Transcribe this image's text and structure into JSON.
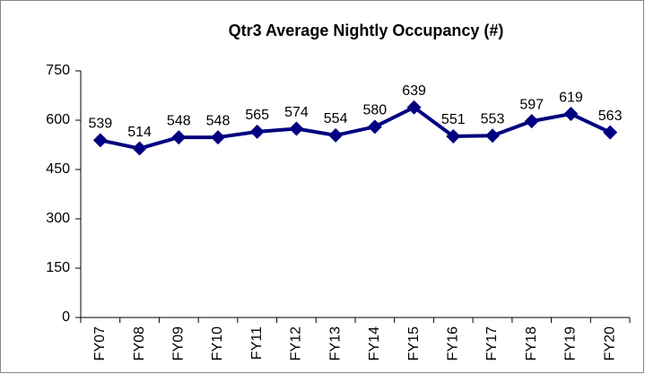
{
  "chart_data": {
    "type": "line",
    "title": "Qtr3 Average Nightly Occupancy (#)",
    "categories": [
      "FY07",
      "FY08",
      "FY09",
      "FY10",
      "FY11",
      "FY12",
      "FY13",
      "FY14",
      "FY15",
      "FY16",
      "FY17",
      "FY18",
      "FY19",
      "FY20"
    ],
    "values": [
      539,
      514,
      548,
      548,
      565,
      574,
      554,
      580,
      639,
      551,
      553,
      597,
      619,
      563
    ],
    "color": "#000080",
    "ylim": [
      0,
      750
    ],
    "yticks": [
      0,
      150,
      300,
      450,
      600,
      750
    ],
    "grid": false
  }
}
